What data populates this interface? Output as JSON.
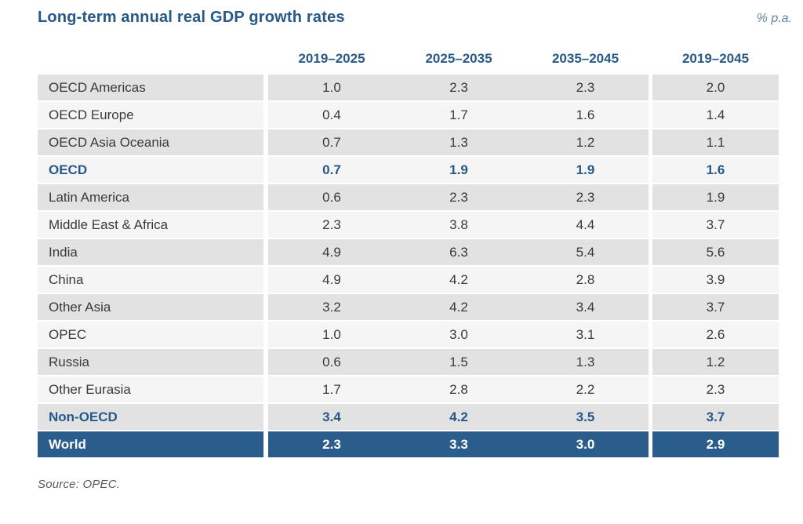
{
  "title": "Long-term annual real GDP growth rates",
  "unit_label": "% p.a.",
  "source": "Source: OPEC.",
  "colors": {
    "accent_blue": "#26598b",
    "world_row_bg": "#2b5d8c",
    "unit_label_blue": "#5e87ac",
    "row_dark": "#e2e2e2",
    "row_light": "#f5f5f5",
    "body_text": "#3a3a3a",
    "source_text": "#5a5a5a"
  },
  "chart_data": {
    "type": "table",
    "title": "Long-term annual real GDP growth rates",
    "unit": "% p.a.",
    "columns": [
      "2019–2025",
      "2025–2035",
      "2035–2045",
      "2019–2045"
    ],
    "rows": [
      {
        "label": "OECD Americas",
        "values": [
          "1.0",
          "2.3",
          "2.3",
          "2.0"
        ],
        "style": "normal"
      },
      {
        "label": "OECD Europe",
        "values": [
          "0.4",
          "1.7",
          "1.6",
          "1.4"
        ],
        "style": "normal"
      },
      {
        "label": "OECD Asia Oceania",
        "values": [
          "0.7",
          "1.3",
          "1.2",
          "1.1"
        ],
        "style": "normal"
      },
      {
        "label": "OECD",
        "values": [
          "0.7",
          "1.9",
          "1.9",
          "1.6"
        ],
        "style": "subtotal"
      },
      {
        "label": "Latin America",
        "values": [
          "0.6",
          "2.3",
          "2.3",
          "1.9"
        ],
        "style": "normal"
      },
      {
        "label": "Middle East & Africa",
        "values": [
          "2.3",
          "3.8",
          "4.4",
          "3.7"
        ],
        "style": "normal"
      },
      {
        "label": "India",
        "values": [
          "4.9",
          "6.3",
          "5.4",
          "5.6"
        ],
        "style": "normal"
      },
      {
        "label": "China",
        "values": [
          "4.9",
          "4.2",
          "2.8",
          "3.9"
        ],
        "style": "normal"
      },
      {
        "label": "Other Asia",
        "values": [
          "3.2",
          "4.2",
          "3.4",
          "3.7"
        ],
        "style": "normal"
      },
      {
        "label": "OPEC",
        "values": [
          "1.0",
          "3.0",
          "3.1",
          "2.6"
        ],
        "style": "normal"
      },
      {
        "label": "Russia",
        "values": [
          "0.6",
          "1.5",
          "1.3",
          "1.2"
        ],
        "style": "normal"
      },
      {
        "label": "Other Eurasia",
        "values": [
          "1.7",
          "2.8",
          "2.2",
          "2.3"
        ],
        "style": "normal"
      },
      {
        "label": "Non-OECD",
        "values": [
          "3.4",
          "4.2",
          "3.5",
          "3.7"
        ],
        "style": "subtotal"
      },
      {
        "label": "World",
        "values": [
          "2.3",
          "3.3",
          "3.0",
          "2.9"
        ],
        "style": "total"
      }
    ]
  }
}
